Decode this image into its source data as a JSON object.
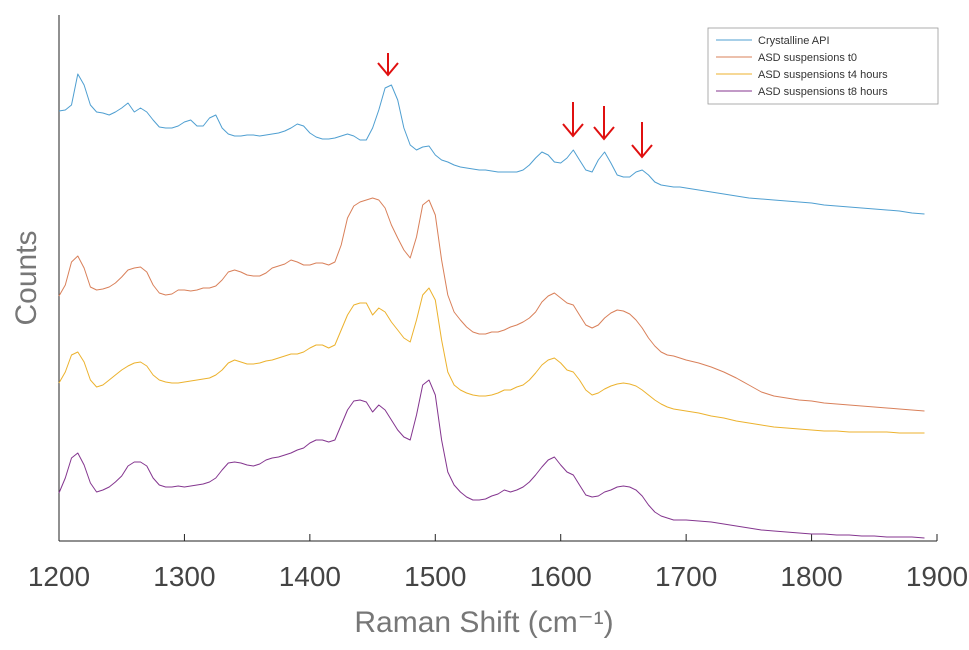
{
  "chart_data": {
    "type": "line",
    "x_label": "Raman Shift (cm⁻¹)",
    "y_label": "Counts",
    "xlim": [
      1200,
      1900
    ],
    "xticks": [
      1200,
      1300,
      1400,
      1500,
      1600,
      1700,
      1800,
      1900
    ],
    "ylim": [
      0,
      530
    ],
    "yticks": [],
    "legend": "upper right",
    "x": [
      1200,
      1205,
      1210,
      1215,
      1220,
      1225,
      1230,
      1235,
      1240,
      1245,
      1250,
      1255,
      1260,
      1265,
      1270,
      1275,
      1280,
      1285,
      1290,
      1295,
      1300,
      1305,
      1310,
      1315,
      1320,
      1325,
      1330,
      1335,
      1340,
      1345,
      1350,
      1355,
      1360,
      1365,
      1370,
      1375,
      1380,
      1385,
      1390,
      1395,
      1400,
      1405,
      1410,
      1415,
      1420,
      1425,
      1430,
      1435,
      1440,
      1445,
      1450,
      1455,
      1460,
      1465,
      1470,
      1475,
      1480,
      1485,
      1490,
      1495,
      1500,
      1505,
      1510,
      1515,
      1520,
      1525,
      1530,
      1535,
      1540,
      1545,
      1550,
      1555,
      1560,
      1565,
      1570,
      1575,
      1580,
      1585,
      1590,
      1595,
      1600,
      1605,
      1610,
      1615,
      1620,
      1625,
      1630,
      1635,
      1640,
      1645,
      1650,
      1655,
      1660,
      1665,
      1670,
      1675,
      1680,
      1685,
      1690,
      1695,
      1700,
      1710,
      1720,
      1730,
      1740,
      1750,
      1760,
      1770,
      1780,
      1790,
      1800,
      1810,
      1820,
      1830,
      1840,
      1850,
      1860,
      1870,
      1880,
      1890
    ],
    "series": [
      {
        "name": "Crystalline API",
        "color": "#4f9fd1",
        "values": [
          430,
          431,
          436,
          467,
          456,
          436,
          429,
          428,
          426,
          429,
          433,
          438,
          429,
          433,
          429,
          421,
          414,
          413,
          413,
          415,
          419,
          421,
          415,
          415,
          423,
          426,
          413,
          407,
          405,
          405,
          406,
          406,
          405,
          406,
          407,
          408,
          410,
          413,
          417,
          415,
          408,
          404,
          402,
          402,
          403,
          405,
          407,
          405,
          401,
          401,
          413,
          431,
          453,
          456,
          441,
          413,
          396,
          391,
          394,
          395,
          386,
          381,
          379,
          376,
          374,
          373,
          372,
          371,
          371,
          370,
          369,
          369,
          369,
          369,
          371,
          376,
          383,
          389,
          386,
          379,
          378,
          383,
          391,
          381,
          371,
          369,
          381,
          389,
          378,
          366,
          364,
          364,
          369,
          371,
          366,
          359,
          356,
          355,
          354,
          354,
          353,
          351,
          349,
          347,
          345,
          343,
          342,
          341,
          340,
          339,
          338,
          336,
          335,
          334,
          333,
          332,
          331,
          330,
          328,
          327
        ]
      },
      {
        "name": "ASD suspensions t0",
        "color": "#d9805a",
        "values": [
          245,
          256,
          279,
          285,
          273,
          254,
          251,
          252,
          254,
          258,
          264,
          271,
          273,
          274,
          269,
          256,
          248,
          246,
          247,
          251,
          251,
          250,
          251,
          253,
          253,
          255,
          261,
          269,
          271,
          269,
          266,
          265,
          265,
          268,
          273,
          275,
          277,
          281,
          279,
          276,
          276,
          278,
          278,
          276,
          279,
          296,
          323,
          335,
          339,
          341,
          343,
          341,
          333,
          316,
          303,
          291,
          283,
          304,
          336,
          341,
          326,
          281,
          246,
          229,
          221,
          214,
          209,
          207,
          207,
          209,
          209,
          211,
          214,
          216,
          219,
          223,
          229,
          239,
          245,
          248,
          243,
          238,
          236,
          226,
          216,
          213,
          216,
          223,
          228,
          231,
          230,
          227,
          221,
          213,
          203,
          195,
          189,
          186,
          185,
          183,
          181,
          178,
          174,
          169,
          163,
          156,
          149,
          145,
          143,
          141,
          140,
          138,
          137,
          136,
          135,
          134,
          133,
          132,
          131,
          130
        ]
      },
      {
        "name": "ASD suspensions t4 hours",
        "color": "#ecb22e",
        "values": [
          158,
          169,
          186,
          189,
          179,
          161,
          154,
          156,
          161,
          166,
          171,
          175,
          178,
          179,
          175,
          166,
          161,
          159,
          158,
          158,
          159,
          160,
          161,
          162,
          163,
          166,
          171,
          178,
          181,
          179,
          177,
          177,
          178,
          180,
          181,
          183,
          185,
          187,
          187,
          189,
          193,
          196,
          196,
          193,
          196,
          211,
          226,
          236,
          238,
          238,
          226,
          233,
          229,
          219,
          211,
          203,
          199,
          221,
          246,
          253,
          241,
          201,
          169,
          156,
          151,
          148,
          146,
          145,
          145,
          146,
          148,
          151,
          151,
          154,
          156,
          161,
          168,
          176,
          181,
          183,
          178,
          171,
          169,
          161,
          151,
          146,
          148,
          152,
          155,
          157,
          158,
          157,
          155,
          151,
          146,
          141,
          137,
          134,
          132,
          131,
          130,
          128,
          125,
          123,
          120,
          118,
          116,
          114,
          113,
          112,
          111,
          110,
          110,
          109,
          109,
          109,
          109,
          108,
          108,
          108
        ]
      },
      {
        "name": "ASD suspensions t8 hours",
        "color": "#84368f",
        "values": [
          48,
          63,
          83,
          88,
          76,
          58,
          49,
          51,
          54,
          59,
          65,
          75,
          79,
          79,
          75,
          63,
          56,
          54,
          54,
          55,
          54,
          55,
          56,
          57,
          59,
          63,
          71,
          78,
          79,
          78,
          76,
          75,
          77,
          81,
          83,
          84,
          86,
          88,
          91,
          93,
          98,
          101,
          101,
          99,
          101,
          116,
          131,
          140,
          141,
          139,
          129,
          136,
          131,
          121,
          111,
          104,
          101,
          126,
          156,
          161,
          146,
          101,
          69,
          56,
          49,
          44,
          41,
          41,
          42,
          45,
          47,
          51,
          49,
          51,
          54,
          59,
          66,
          74,
          81,
          84,
          76,
          69,
          66,
          56,
          46,
          44,
          45,
          49,
          51,
          54,
          55,
          54,
          51,
          45,
          36,
          29,
          25,
          23,
          21,
          21,
          21,
          20,
          19,
          17,
          15,
          13,
          11,
          10,
          9,
          8,
          7,
          7,
          6,
          6,
          5,
          5,
          4,
          4,
          4,
          3
        ]
      }
    ]
  }
}
